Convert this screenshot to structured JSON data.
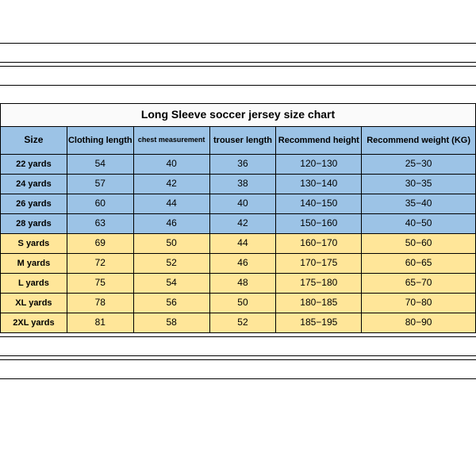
{
  "title": "Long Sleeve soccer jersey size chart",
  "columns": [
    "Size",
    "Clothing length",
    "chest measurement",
    "trouser length",
    "Recommend height",
    "Recommend weight (KG)"
  ],
  "colors": {
    "blue": "#9cc3e6",
    "yellow": "#ffe699",
    "border": "#000000",
    "title_bg": "#fafafa"
  },
  "font": {
    "family_body": "Verdana",
    "family_title": "Arial",
    "title_size_pt": 14,
    "header_size_pt": 11,
    "cell_size_pt": 12
  },
  "rows": [
    {
      "group": "blue",
      "cells": [
        "22 yards",
        "54",
        "40",
        "36",
        "120−130",
        "25−30"
      ]
    },
    {
      "group": "blue",
      "cells": [
        "24 yards",
        "57",
        "42",
        "38",
        "130−140",
        "30−35"
      ]
    },
    {
      "group": "blue",
      "cells": [
        "26 yards",
        "60",
        "44",
        "40",
        "140−150",
        "35−40"
      ]
    },
    {
      "group": "blue",
      "cells": [
        "28 yards",
        "63",
        "46",
        "42",
        "150−160",
        "40−50"
      ]
    },
    {
      "group": "yellow",
      "cells": [
        "S yards",
        "69",
        "50",
        "44",
        "160−170",
        "50−60"
      ]
    },
    {
      "group": "yellow",
      "cells": [
        "M yards",
        "72",
        "52",
        "46",
        "170−175",
        "60−65"
      ]
    },
    {
      "group": "yellow",
      "cells": [
        "L yards",
        "75",
        "54",
        "48",
        "175−180",
        "65−70"
      ]
    },
    {
      "group": "yellow",
      "cells": [
        "XL yards",
        "78",
        "56",
        "50",
        "180−185",
        "70−80"
      ]
    },
    {
      "group": "yellow",
      "cells": [
        "2XL yards",
        "81",
        "58",
        "52",
        "185−195",
        "80−90"
      ]
    }
  ]
}
